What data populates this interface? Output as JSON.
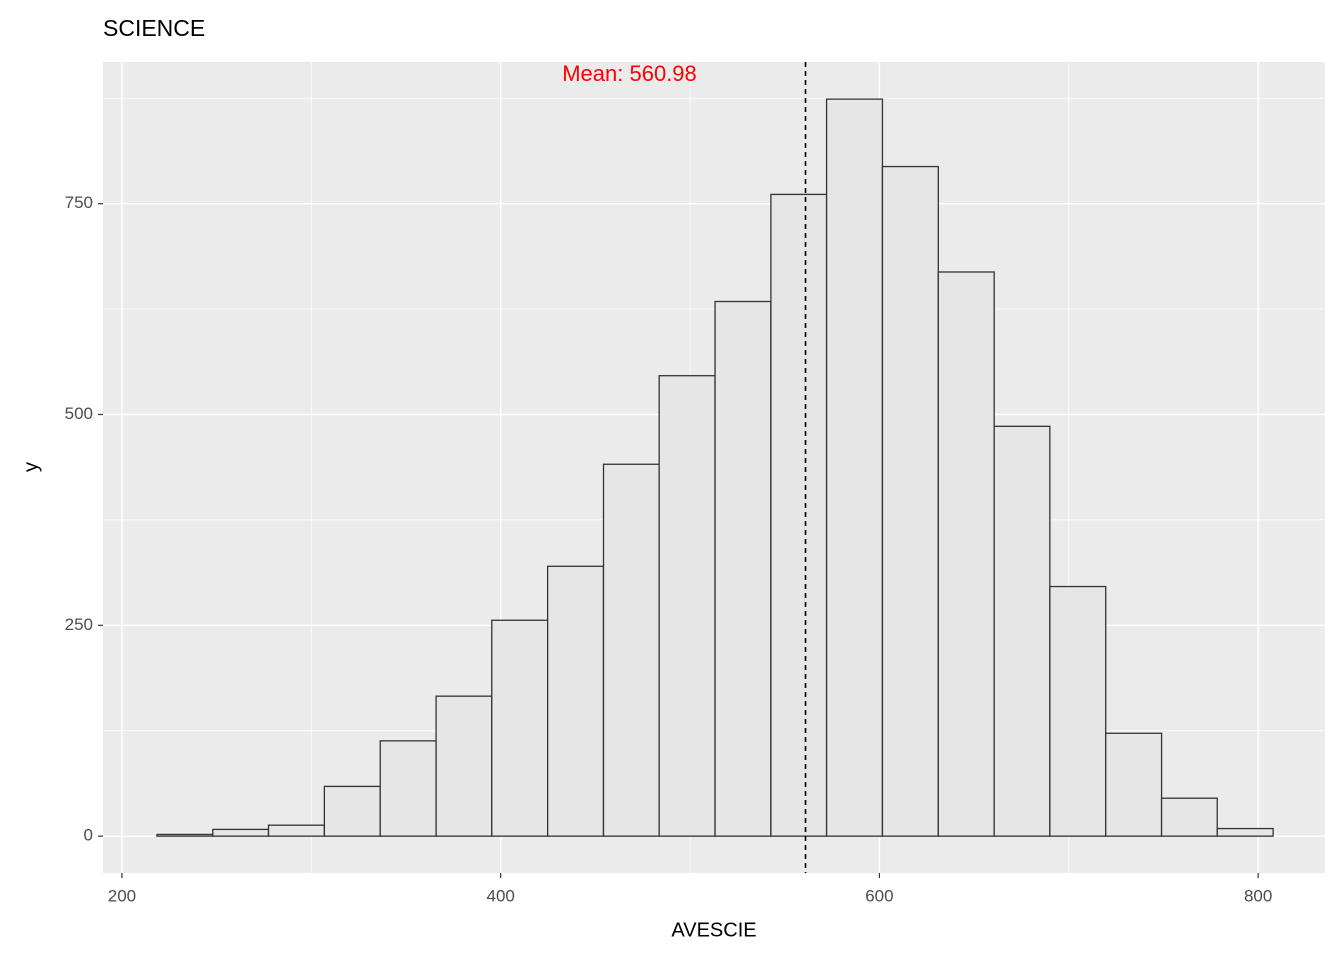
{
  "chart_data": {
    "type": "histogram",
    "title": "SCIENCE",
    "x_label": "AVESCIE",
    "y_label": "y",
    "bins": [
      218.5,
      248.0,
      277.4,
      306.9,
      336.4,
      365.9,
      395.3,
      424.8,
      454.3,
      483.7,
      513.2,
      542.7,
      572.1,
      601.6,
      631.1,
      660.6,
      690.0,
      719.5,
      749.0,
      778.4,
      807.9
    ],
    "values": [
      2,
      8,
      13,
      59,
      113,
      166,
      256,
      320,
      441,
      546,
      634,
      761,
      874,
      794,
      669,
      486,
      296,
      122,
      45,
      9
    ],
    "fill": "#e6e6e6",
    "edge_color": "#333333",
    "xlim": [
      190,
      835.3
    ],
    "xticks": [
      200,
      400,
      600,
      800
    ],
    "x_minor_ticks": [
      300,
      500,
      700
    ],
    "ylim": [
      -43.7,
      918
    ],
    "yticks": [
      0,
      250,
      500,
      750
    ],
    "y_minor_ticks": [
      125,
      375,
      625,
      875
    ],
    "grid": true,
    "mean": {
      "value": 560.98,
      "label": "Mean: 560.98",
      "color": "#ff0000"
    }
  }
}
